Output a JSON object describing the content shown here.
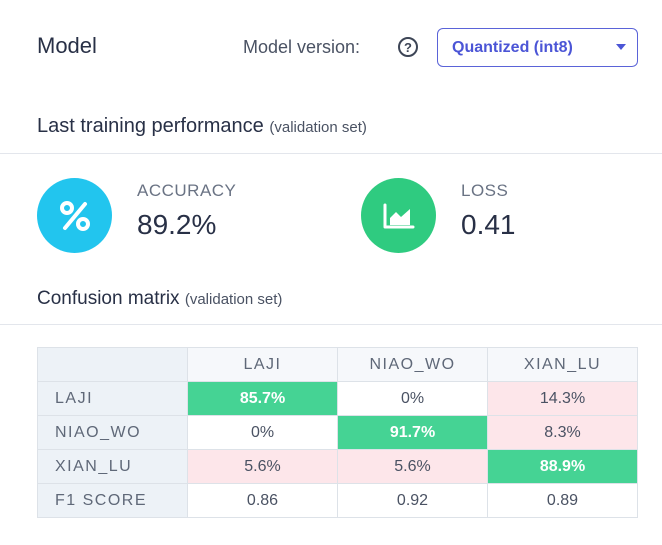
{
  "header": {
    "title": "Model",
    "version_label": "Model version:",
    "help_glyph": "?",
    "version_selected": "Quantized (int8)"
  },
  "performance": {
    "title": "Last training performance",
    "subtitle": "(validation set)",
    "accuracy_label": "ACCURACY",
    "accuracy_value": "89.2%",
    "accuracy_icon": "percent-icon",
    "accuracy_color": "#22c5ee",
    "loss_label": "LOSS",
    "loss_value": "0.41",
    "loss_icon": "area-chart-icon",
    "loss_color": "#2fcb80"
  },
  "confusion": {
    "title": "Confusion matrix",
    "subtitle": "(validation set)",
    "columns": [
      "LAJI",
      "NIAO_WO",
      "XIAN_LU"
    ],
    "rows": [
      {
        "label": "LAJI",
        "cells": [
          "85.7%",
          "0%",
          "14.3%"
        ]
      },
      {
        "label": "NIAO_WO",
        "cells": [
          "0%",
          "91.7%",
          "8.3%"
        ]
      },
      {
        "label": "XIAN_LU",
        "cells": [
          "5.6%",
          "5.6%",
          "88.9%"
        ]
      }
    ],
    "f1_label": "F1 SCORE",
    "f1_values": [
      "0.86",
      "0.92",
      "0.89"
    ],
    "colors": {
      "diagonal": "#45d394",
      "error": "#fde6ea"
    }
  }
}
